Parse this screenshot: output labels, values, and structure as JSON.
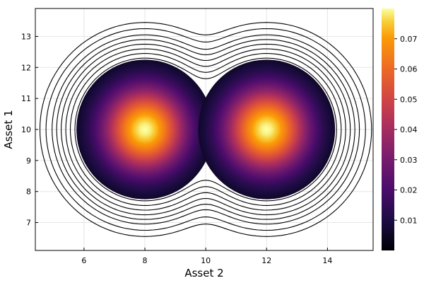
{
  "chart_data": {
    "type": "contour",
    "title": "",
    "xlabel": "Asset 2",
    "ylabel": "Asset 1",
    "xlim": [
      4.4,
      15.5
    ],
    "ylim": [
      6.1,
      13.9
    ],
    "x_ticks": [
      6,
      8,
      10,
      12,
      14
    ],
    "y_ticks": [
      7,
      8,
      9,
      10,
      11,
      12,
      13
    ],
    "grid": true,
    "colormap": "inferno",
    "colorbar": {
      "ticks": [
        0.01,
        0.02,
        0.03,
        0.04,
        0.05,
        0.06,
        0.07
      ],
      "min": 0,
      "max": 0.08
    },
    "peaks": [
      {
        "x": 8,
        "y": 10,
        "value": 0.08
      },
      {
        "x": 12,
        "y": 10,
        "value": 0.08
      }
    ]
  }
}
